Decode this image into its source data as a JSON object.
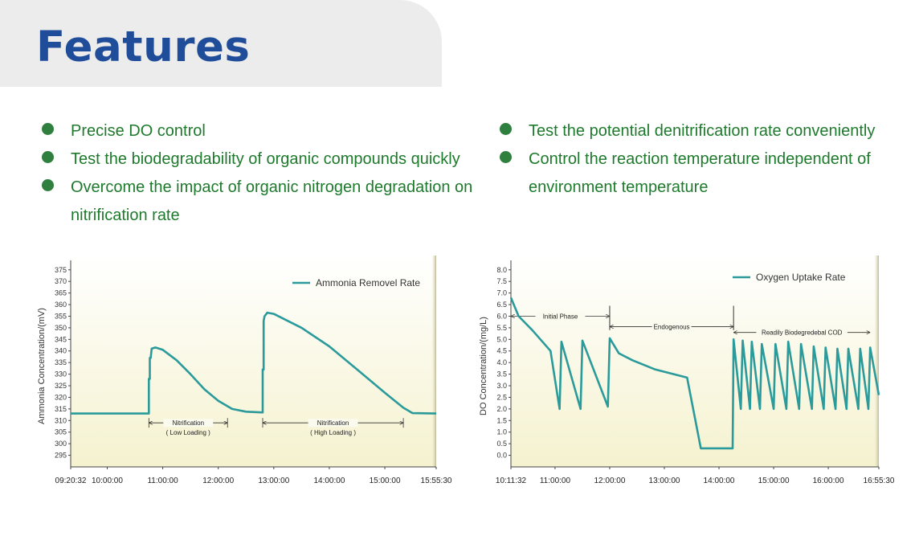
{
  "header": {
    "title": "Features"
  },
  "features": {
    "left": [
      "Precise DO control",
      "Test the biodegradability of organic compounds quickly",
      "Overcome the impact of organic nitrogen degradation on nitrification rate"
    ],
    "right": [
      "Test the potential denitrification rate conveniently",
      "Control the reaction temperature independent of environment temperature"
    ]
  },
  "colors": {
    "title": "#1f4d9a",
    "feature_text": "#1e7a2c",
    "bullet": "#2f7f3f",
    "series_line": "#2a9a9a",
    "plot_bg_top": "#ffffff",
    "plot_bg_bottom": "#f5f2cf"
  },
  "chart_data": [
    {
      "type": "line",
      "title": "",
      "xlabel": "",
      "ylabel": "Ammonia Concentration/(mV)",
      "ylim": [
        290,
        377
      ],
      "yticks": [
        375,
        370,
        365,
        360,
        355,
        350,
        345,
        340,
        335,
        330,
        325,
        320,
        315,
        310,
        305,
        300,
        295
      ],
      "xlim": [
        "09:20:32",
        "15:55:30"
      ],
      "xticks": [
        "09:20:32",
        "10:00:00",
        "11:00:00",
        "12:00:00",
        "13:00:00",
        "14:00:00",
        "15:00:00",
        "15:55:30"
      ],
      "grid": false,
      "legend_placement": "top-right",
      "series": [
        {
          "name": "Ammonia Removel Rate",
          "points": [
            [
              "09:20:32",
              313
            ],
            [
              "10:45:00",
              313
            ],
            [
              "10:45:00",
              328
            ],
            [
              "10:46:00",
              328
            ],
            [
              "10:46:00",
              337
            ],
            [
              "10:47:00",
              337
            ],
            [
              "10:48:00",
              341
            ],
            [
              "10:52:00",
              341.5
            ],
            [
              "11:00:00",
              340.5
            ],
            [
              "11:15:00",
              336
            ],
            [
              "11:30:00",
              330
            ],
            [
              "11:45:00",
              323.5
            ],
            [
              "12:00:00",
              318.5
            ],
            [
              "12:15:00",
              315
            ],
            [
              "12:30:00",
              313.8
            ],
            [
              "12:47:00",
              313.5
            ],
            [
              "12:48:00",
              313.5
            ],
            [
              "12:48:00",
              332
            ],
            [
              "12:49:00",
              332
            ],
            [
              "12:49:00",
              353
            ],
            [
              "12:50:00",
              355
            ],
            [
              "12:53:00",
              356.5
            ],
            [
              "13:00:00",
              356
            ],
            [
              "13:30:00",
              350
            ],
            [
              "14:00:00",
              342
            ],
            [
              "14:30:00",
              332
            ],
            [
              "15:00:00",
              322
            ],
            [
              "15:20:00",
              315.5
            ],
            [
              "15:30:00",
              313.2
            ],
            [
              "15:55:30",
              313
            ]
          ]
        }
      ],
      "annotations": [
        {
          "label": "Nitrification",
          "sublabel": "( Low Loading )",
          "y": 309,
          "x_start": "10:45:00",
          "x_end": "12:10:00"
        },
        {
          "label": "Nitrification",
          "sublabel": "( High Loading )",
          "y": 309,
          "x_start": "12:48:00",
          "x_end": "15:20:00"
        }
      ]
    },
    {
      "type": "line",
      "title": "",
      "xlabel": "",
      "ylabel": "DO Concentration/(mg/L)",
      "ylim": [
        -0.5,
        8.2
      ],
      "yticks": [
        8.0,
        7.5,
        7.0,
        6.5,
        6.0,
        5.5,
        5.0,
        4.5,
        4.0,
        3.5,
        3.0,
        2.5,
        2.0,
        1.5,
        1.0,
        0.5,
        0.0
      ],
      "xlim": [
        "10:11:32",
        "16:55:30"
      ],
      "xticks": [
        "10:11:32",
        "11:00:00",
        "12:00:00",
        "13:00:00",
        "14:00:00",
        "15:00:00",
        "16:00:00",
        "16:55:30"
      ],
      "grid": false,
      "legend_placement": "top-right",
      "series": [
        {
          "name": "Oxygen Uptake Rate",
          "points": [
            [
              "10:11:32",
              6.8
            ],
            [
              "10:20:00",
              6.0
            ],
            [
              "10:35:00",
              5.4
            ],
            [
              "10:55:00",
              4.5
            ],
            [
              "11:05:00",
              2.0
            ],
            [
              "11:07:00",
              4.9
            ],
            [
              "11:28:00",
              2.0
            ],
            [
              "11:30:00",
              4.95
            ],
            [
              "11:58:00",
              2.1
            ],
            [
              "12:00:00",
              5.05
            ],
            [
              "12:10:00",
              4.4
            ],
            [
              "12:25:00",
              4.1
            ],
            [
              "12:50:00",
              3.7
            ],
            [
              "13:25:00",
              3.35
            ],
            [
              "13:40:00",
              0.3
            ],
            [
              "14:15:00",
              0.3
            ],
            [
              "14:16:00",
              5.0
            ],
            [
              "14:24:00",
              2.0
            ],
            [
              "14:26:00",
              4.95
            ],
            [
              "14:34:00",
              2.0
            ],
            [
              "14:36:00",
              4.9
            ],
            [
              "14:45:00",
              2.0
            ],
            [
              "14:47:00",
              4.8
            ],
            [
              "15:00:00",
              2.0
            ],
            [
              "15:02:00",
              4.8
            ],
            [
              "15:14:00",
              2.0
            ],
            [
              "15:16:00",
              4.9
            ],
            [
              "15:28:00",
              2.0
            ],
            [
              "15:30:00",
              4.8
            ],
            [
              "15:42:00",
              2.0
            ],
            [
              "15:44:00",
              4.7
            ],
            [
              "15:55:00",
              2.0
            ],
            [
              "15:57:00",
              4.65
            ],
            [
              "16:08:00",
              2.0
            ],
            [
              "16:10:00",
              4.6
            ],
            [
              "16:20:00",
              2.0
            ],
            [
              "16:22:00",
              4.6
            ],
            [
              "16:33:00",
              2.0
            ],
            [
              "16:35:00",
              4.6
            ],
            [
              "16:44:00",
              2.0
            ],
            [
              "16:46:00",
              4.65
            ],
            [
              "16:55:30",
              2.6
            ]
          ]
        }
      ],
      "annotations": [
        {
          "label": "Initial Phase",
          "y": 6.0,
          "x_start": "10:11:32",
          "x_end": "12:00:00"
        },
        {
          "label": "Endogenous",
          "y": 5.55,
          "x_start": "12:00:00",
          "x_end": "14:16:00"
        },
        {
          "label": "Readily Biodegredebal COD",
          "y": 5.3,
          "x_start": "14:16:00",
          "x_end": "16:46:00"
        }
      ],
      "dividers": [
        "12:00:00",
        "14:16:00"
      ]
    }
  ]
}
